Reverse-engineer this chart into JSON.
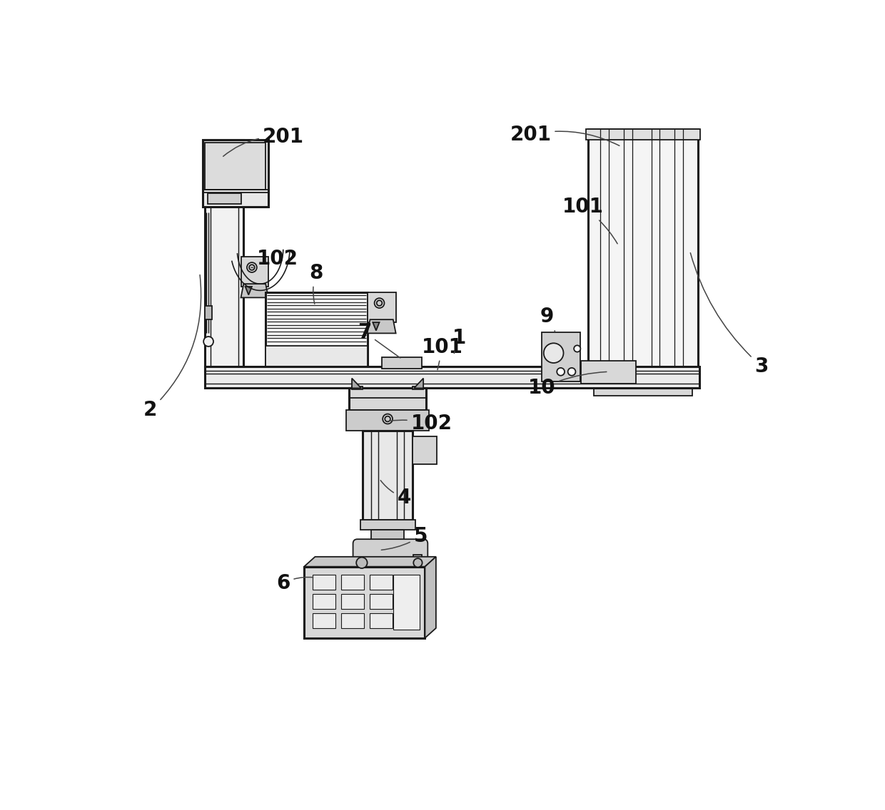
{
  "bg_color": "#ffffff",
  "lc": "#1a1a1a",
  "lw": 1.3,
  "tlw": 2.2,
  "fs": 20,
  "fs_sm": 18
}
